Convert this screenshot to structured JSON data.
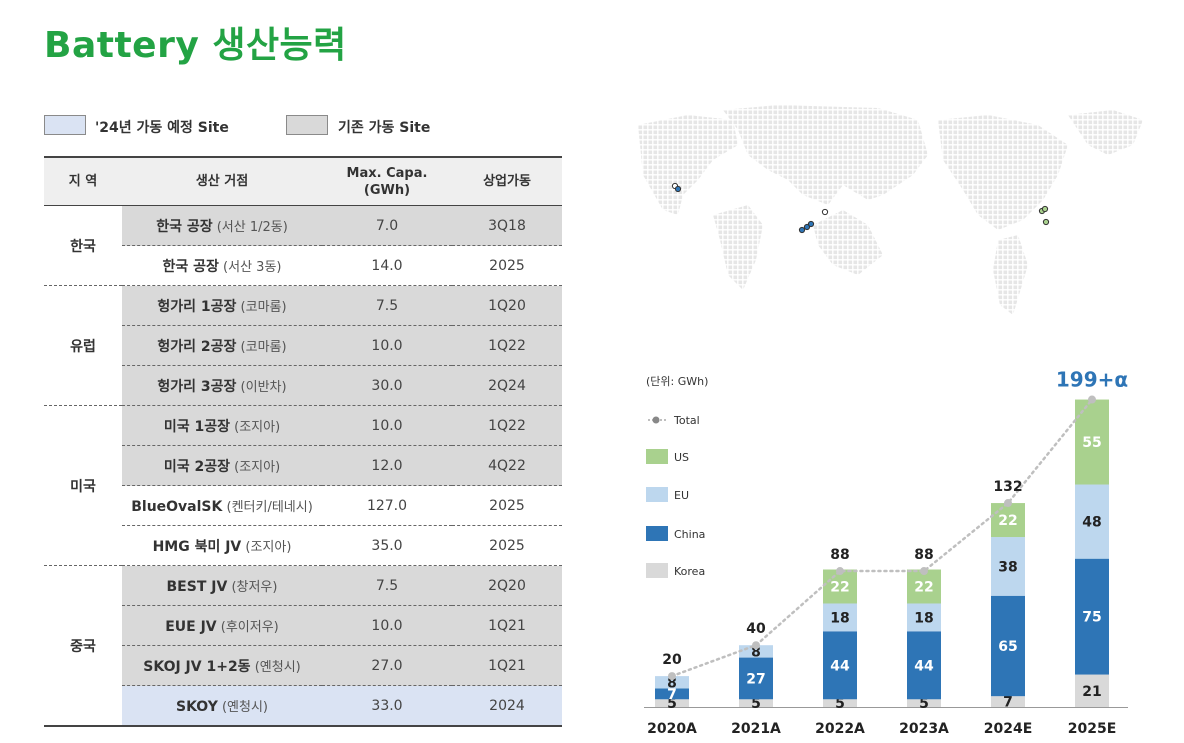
{
  "title": "Battery 생산능력",
  "legend": [
    {
      "label": "'24년 가동 예정 Site",
      "color": "#dae3f3"
    },
    {
      "label": "기존 가동 Site",
      "color": "#d9d9d9"
    }
  ],
  "table": {
    "headers": [
      "지 역",
      "생산 거점",
      "Max. Capa. (GWh)",
      "상업가동"
    ],
    "groups": [
      {
        "region": "한국",
        "rows": [
          {
            "site": "한국 공장",
            "detail": "(서산 1/2동)",
            "capa": "7.0",
            "start": "3Q18",
            "status": "existing"
          },
          {
            "site": "한국 공장",
            "detail": "(서산 3동)",
            "capa": "14.0",
            "start": "2025",
            "status": "plain"
          }
        ]
      },
      {
        "region": "유럽",
        "rows": [
          {
            "site": "헝가리 1공장",
            "detail": "(코마롬)",
            "capa": "7.5",
            "start": "1Q20",
            "status": "existing"
          },
          {
            "site": "헝가리 2공장",
            "detail": "(코마롬)",
            "capa": "10.0",
            "start": "1Q22",
            "status": "existing"
          },
          {
            "site": "헝가리 3공장",
            "detail": "(이반차)",
            "capa": "30.0",
            "start": "2Q24",
            "status": "existing"
          }
        ]
      },
      {
        "region": "미국",
        "rows": [
          {
            "site": "미국 1공장",
            "detail": "(조지아)",
            "capa": "10.0",
            "start": "1Q22",
            "status": "existing"
          },
          {
            "site": "미국 2공장",
            "detail": "(조지아)",
            "capa": "12.0",
            "start": "4Q22",
            "status": "existing"
          },
          {
            "site": "BlueOvalSK",
            "detail": "(켄터키/테네시)",
            "capa": "127.0",
            "start": "2025",
            "status": "plain"
          },
          {
            "site": "HMG 북미 JV",
            "detail": "(조지아)",
            "capa": "35.0",
            "start": "2025",
            "status": "plain"
          }
        ]
      },
      {
        "region": "중국",
        "rows": [
          {
            "site": "BEST JV",
            "detail": "(창저우)",
            "capa": "7.5",
            "start": "2Q20",
            "status": "existing"
          },
          {
            "site": "EUE JV",
            "detail": "(후이저우)",
            "capa": "10.0",
            "start": "1Q21",
            "status": "existing"
          },
          {
            "site": "SKOJ JV 1+2동",
            "detail": "(옌청시)",
            "capa": "27.0",
            "start": "1Q21",
            "status": "existing"
          },
          {
            "site": "SKOY",
            "detail": "(옌청시)",
            "capa": "33.0",
            "start": "2024",
            "status": "planned"
          }
        ]
      }
    ]
  },
  "chart_data": {
    "type": "bar",
    "stacked": true,
    "unit_label": "(단위: GWh)",
    "categories": [
      "2020A",
      "2021A",
      "2022A",
      "2023A",
      "2024E",
      "2025E"
    ],
    "series": [
      {
        "name": "Korea",
        "color": "#d9d9d9",
        "values": [
          5,
          5,
          5,
          5,
          7,
          21
        ]
      },
      {
        "name": "China",
        "color": "#2e75b6",
        "values": [
          7,
          27,
          44,
          44,
          65,
          75
        ]
      },
      {
        "name": "EU",
        "color": "#bdd7ee",
        "values": [
          8,
          8,
          18,
          18,
          38,
          48
        ]
      },
      {
        "name": "US",
        "color": "#a9d18e",
        "values": [
          0,
          0,
          22,
          22,
          22,
          55
        ]
      }
    ],
    "total": {
      "name": "Total",
      "values": [
        20,
        40,
        88,
        88,
        132,
        199
      ],
      "labels": [
        "20",
        "40",
        "88",
        "88",
        "132",
        "199+α"
      ],
      "color": "#bfbfbf"
    },
    "legend_position": "left"
  },
  "map": {
    "land_color": "#ebebeb",
    "markers": {
      "europe_color": "#2e75b6",
      "china_color": "#2e75b6",
      "us_color": "#a9d18e",
      "korea_color": "#d9d9d9"
    }
  }
}
